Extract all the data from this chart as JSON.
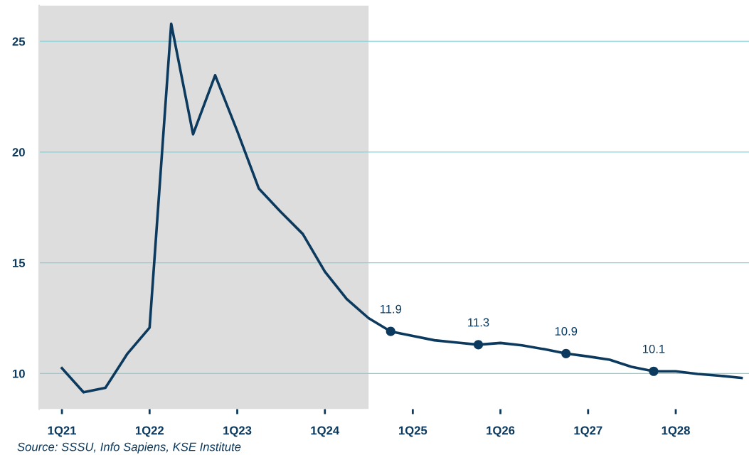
{
  "chart_data": {
    "type": "line",
    "x": [
      "2021-01",
      "2021-04",
      "2021-07",
      "2021-10",
      "2022-01",
      "2022-04",
      "2022-07",
      "2022-10",
      "2023-01",
      "2023-04",
      "2023-07",
      "2023-10",
      "2024-01",
      "2024-04",
      "2024-07",
      "2024-10",
      "2025-01",
      "2025-04",
      "2025-07",
      "2025-10",
      "2026-01",
      "2026-04",
      "2026-07",
      "2026-10",
      "2027-01",
      "2027-04",
      "2027-07",
      "2027-10",
      "2028-01",
      "2028-04",
      "2028-07",
      "2028-10"
    ],
    "series": [
      {
        "color": "#0b3a5e",
        "values": [
          10.24,
          9.15,
          9.35,
          10.9,
          12.07,
          25.8,
          20.8,
          23.47,
          20.95,
          18.35,
          17.3,
          16.3,
          14.6,
          13.36,
          12.5,
          11.9,
          11.7,
          11.5,
          11.4,
          11.3,
          11.38,
          11.27,
          11.1,
          10.9,
          10.77,
          10.62,
          10.3,
          10.1,
          10.1,
          9.98,
          9.9,
          9.8
        ]
      },
      {
        "type": "scatter",
        "color": "#0b3a5e",
        "x": [
          "2024-10",
          "2025-10",
          "2026-10",
          "2027-10"
        ],
        "values": [
          11.9,
          11.3,
          10.9,
          10.1
        ],
        "value_labels": [
          "11.9",
          "11.3",
          "10.9",
          "10.1"
        ]
      }
    ],
    "xlim": [
      "2020-09-28",
      "2028-11-01"
    ],
    "xticks": [
      {
        "value": "2021-01",
        "label": "1Q21"
      },
      {
        "value": "2022-01",
        "label": "1Q22"
      },
      {
        "value": "2023-01",
        "label": "1Q23"
      },
      {
        "value": "2024-01",
        "label": "1Q24"
      },
      {
        "value": "2025-01",
        "label": "1Q25"
      },
      {
        "value": "2026-01",
        "label": "1Q26"
      },
      {
        "value": "2027-01",
        "label": "1Q27"
      },
      {
        "value": "2028-01",
        "label": "1Q28"
      }
    ],
    "ylim": [
      8.39,
      26.62
    ],
    "yticks": [
      10,
      15,
      20,
      25
    ],
    "grid": "y",
    "bands": [
      {
        "axis": "x",
        "from": "2020-09-28",
        "to": "2024-07",
        "color": "#dddddd"
      }
    ],
    "annotations": [
      "Source: SSSU, Info Sapiens, KSE Institute"
    ]
  }
}
